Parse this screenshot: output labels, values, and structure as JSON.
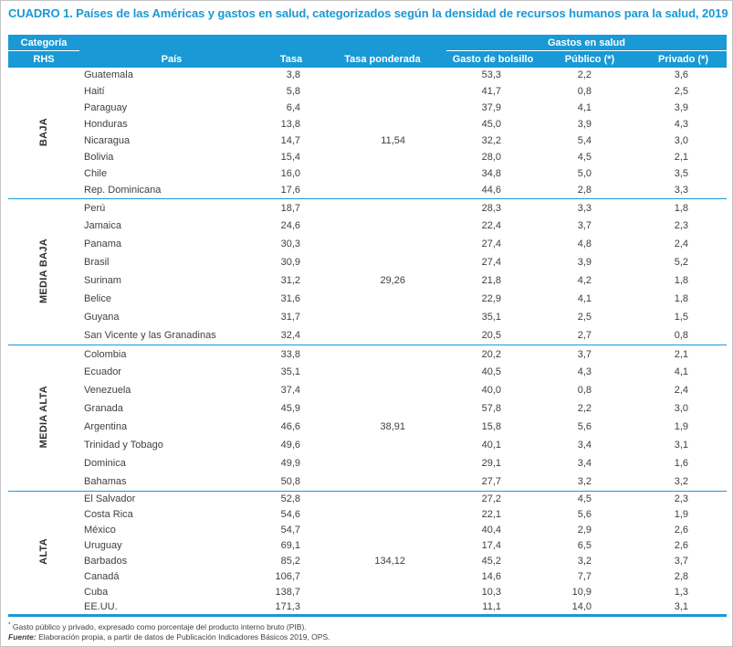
{
  "title": "CUADRO 1. Países de las Américas y gastos en salud, categorizados según la densidad de recursos humanos para la salud, 2019",
  "colors": {
    "accent_blue": "#1999d5",
    "text": "#3f3f3f",
    "header_text": "#ffffff"
  },
  "table": {
    "header": {
      "category_top": "Categoría",
      "category_bottom": "RHS",
      "country": "País",
      "rate": "Tasa",
      "weighted_rate": "Tasa ponderada",
      "health_expenses_group": "Gastos en salud",
      "out_of_pocket": "Gasto de bolsillo",
      "public": "Público (*)",
      "private": "Privado (*)"
    },
    "groups": [
      {
        "category": "BAJA",
        "rows": [
          [
            "Guatemala",
            "3,8",
            "",
            "53,3",
            "2,2",
            "3,6"
          ],
          [
            "Haití",
            "5,8",
            "",
            "41,7",
            "0,8",
            "2,5"
          ],
          [
            "Paraguay",
            "6,4",
            "",
            "37,9",
            "4,1",
            "3,9"
          ],
          [
            "Honduras",
            "13,8",
            "",
            "45,0",
            "3,9",
            "4,3"
          ],
          [
            "Nicaragua",
            "14,7",
            "11,54",
            "32,2",
            "5,4",
            "3,0"
          ],
          [
            "Bolivia",
            "15,4",
            "",
            "28,0",
            "4,5",
            "2,1"
          ],
          [
            "Chile",
            "16,0",
            "",
            "34,8",
            "5,0",
            "3,5"
          ],
          [
            "Rep. Dominicana",
            "17,6",
            "",
            "44,6",
            "2,8",
            "3,3"
          ]
        ]
      },
      {
        "category": "MEDIA BAJA",
        "rows": [
          [
            "Perú",
            "18,7",
            "",
            "28,3",
            "3,3",
            "1,8"
          ],
          [
            "Jamaica",
            "24,6",
            "",
            "22,4",
            "3,7",
            "2,3"
          ],
          [
            "Panama",
            "30,3",
            "",
            "27,4",
            "4,8",
            "2,4"
          ],
          [
            "Brasil",
            "30,9",
            "",
            "27,4",
            "3,9",
            "5,2"
          ],
          [
            "Surinam",
            "31,2",
            "29,26",
            "21,8",
            "4,2",
            "1,8"
          ],
          [
            "Belice",
            "31,6",
            "",
            "22,9",
            "4,1",
            "1,8"
          ],
          [
            "Guyana",
            "31,7",
            "",
            "35,1",
            "2,5",
            "1,5"
          ],
          [
            "San Vicente y las Granadinas",
            "32,4",
            "",
            "20,5",
            "2,7",
            "0,8"
          ]
        ]
      },
      {
        "category": "MEDIA ALTA",
        "rows": [
          [
            "Colombia",
            "33,8",
            "",
            "20,2",
            "3,7",
            "2,1"
          ],
          [
            "Ecuador",
            "35,1",
            "",
            "40,5",
            "4,3",
            "4,1"
          ],
          [
            "Venezuela",
            "37,4",
            "",
            "40,0",
            "0,8",
            "2,4"
          ],
          [
            "Granada",
            "45,9",
            "",
            "57,8",
            "2,2",
            "3,0"
          ],
          [
            "Argentina",
            "46,6",
            "38,91",
            "15,8",
            "5,6",
            "1,9"
          ],
          [
            "Trinidad y Tobago",
            "49,6",
            "",
            "40,1",
            "3,4",
            "3,1"
          ],
          [
            "Dominica",
            "49,9",
            "",
            "29,1",
            "3,4",
            "1,6"
          ],
          [
            "Bahamas",
            "50,8",
            "",
            "27,7",
            "3,2",
            "3,2"
          ]
        ]
      },
      {
        "category": "ALTA",
        "rows": [
          [
            "El Salvador",
            "52,8",
            "",
            "27,2",
            "4,5",
            "2,3"
          ],
          [
            "Costa Rica",
            "54,6",
            "",
            "22,1",
            "5,6",
            "1,9"
          ],
          [
            "México",
            "54,7",
            "",
            "40,4",
            "2,9",
            "2,6"
          ],
          [
            "Uruguay",
            "69,1",
            "",
            "17,4",
            "6,5",
            "2,6"
          ],
          [
            "Barbados",
            "85,2",
            "134,12",
            "45,2",
            "3,2",
            "3,7"
          ],
          [
            "Canadá",
            "106,7",
            "",
            "14,6",
            "7,7",
            "2,8"
          ],
          [
            "Cuba",
            "138,7",
            "",
            "10,3",
            "10,9",
            "1,3"
          ],
          [
            "EE.UU.",
            "171,3",
            "",
            "11,1",
            "14,0",
            "3,1"
          ]
        ]
      }
    ]
  },
  "footnotes": {
    "marker": "*",
    "note": " Gasto público y privado, expresado como porcentaje del producto interno bruto (PIB).",
    "source_label": "Fuente:",
    "source_text": " Elaboración propia, a partir de datos de Publicación Indicadores Básicos 2019, OPS."
  }
}
